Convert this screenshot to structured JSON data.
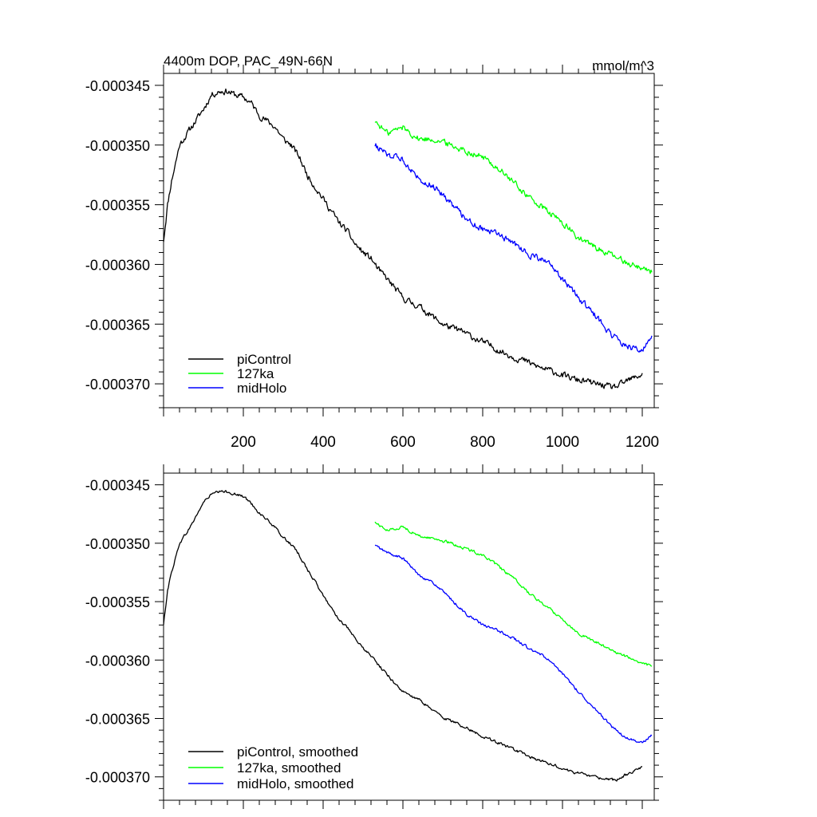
{
  "chart_data": [
    {
      "type": "line",
      "title": "4400m DOP, PAC_49N-66N",
      "units_label": "mmol/m^3",
      "xlim": [
        0,
        1230
      ],
      "ylim": [
        -0.000372,
        -0.000344
      ],
      "xticks": [
        200,
        400,
        600,
        800,
        1000,
        1200
      ],
      "xtick_labels": [
        "200",
        "400",
        "600",
        "800",
        "1000",
        "1200"
      ],
      "yticks": [
        -0.000345,
        -0.00035,
        -0.000355,
        -0.00036,
        -0.000365,
        -0.00037
      ],
      "ytick_labels": [
        "-0.000345",
        "-0.000350",
        "-0.000355",
        "-0.000360",
        "-0.000365",
        "-0.000370"
      ],
      "legend_position": "bottom-left",
      "grid": false,
      "noise": 4.5e-07,
      "series": [
        {
          "name": "piControl",
          "color": "#000000",
          "x": [
            0,
            10,
            20,
            40,
            60,
            80,
            100,
            120,
            140,
            160,
            180,
            200,
            220,
            240,
            260,
            280,
            300,
            320,
            340,
            360,
            380,
            400,
            420,
            440,
            460,
            480,
            500,
            520,
            540,
            560,
            580,
            600,
            620,
            640,
            660,
            680,
            700,
            720,
            740,
            760,
            780,
            800,
            820,
            840,
            860,
            880,
            900,
            920,
            940,
            960,
            980,
            1000,
            1020,
            1040,
            1060,
            1080,
            1100,
            1120,
            1140,
            1160,
            1180,
            1200
          ],
          "values": [
            -0.000358,
            -0.000355,
            -0.000353,
            -0.00035,
            -0.000349,
            -0.000348,
            -0.000347,
            -0.0003458,
            -0.0003455,
            -0.0003455,
            -0.0003458,
            -0.000346,
            -0.0003465,
            -0.0003475,
            -0.000348,
            -0.0003485,
            -0.0003495,
            -0.00035,
            -0.000351,
            -0.0003525,
            -0.0003535,
            -0.0003545,
            -0.0003555,
            -0.0003565,
            -0.0003572,
            -0.0003583,
            -0.000359,
            -0.0003595,
            -0.0003605,
            -0.0003612,
            -0.000362,
            -0.0003628,
            -0.0003632,
            -0.0003635,
            -0.000364,
            -0.0003645,
            -0.000365,
            -0.0003653,
            -0.0003655,
            -0.0003658,
            -0.0003662,
            -0.0003665,
            -0.0003668,
            -0.0003672,
            -0.0003675,
            -0.0003678,
            -0.000368,
            -0.0003683,
            -0.0003686,
            -0.0003688,
            -0.000369,
            -0.0003693,
            -0.0003695,
            -0.0003697,
            -0.0003698,
            -0.00037,
            -0.0003701,
            -0.0003703,
            -0.0003702,
            -0.0003698,
            -0.0003695,
            -0.0003692
          ]
        },
        {
          "name": "127ka",
          "color": "#00ff00",
          "x": [
            530,
            560,
            600,
            640,
            680,
            720,
            760,
            800,
            840,
            880,
            920,
            960,
            1000,
            1040,
            1080,
            1120,
            1160,
            1200,
            1225
          ],
          "values": [
            -0.000348,
            -0.000349,
            -0.0003485,
            -0.0003495,
            -0.0003495,
            -0.00035,
            -0.0003505,
            -0.000351,
            -0.000352,
            -0.0003532,
            -0.0003545,
            -0.0003555,
            -0.0003565,
            -0.0003578,
            -0.0003585,
            -0.0003592,
            -0.0003598,
            -0.0003603,
            -0.0003606
          ]
        },
        {
          "name": "midHolo",
          "color": "#0000ff",
          "x": [
            530,
            560,
            600,
            640,
            680,
            720,
            760,
            800,
            840,
            880,
            920,
            960,
            1000,
            1040,
            1080,
            1120,
            1160,
            1200,
            1225
          ],
          "values": [
            -0.00035,
            -0.0003508,
            -0.0003512,
            -0.0003528,
            -0.0003535,
            -0.0003548,
            -0.0003562,
            -0.000357,
            -0.0003575,
            -0.0003583,
            -0.0003592,
            -0.0003598,
            -0.0003612,
            -0.0003628,
            -0.0003642,
            -0.0003658,
            -0.0003668,
            -0.0003672,
            -0.0003662
          ]
        }
      ]
    },
    {
      "type": "line",
      "xlim": [
        0,
        1230
      ],
      "ylim": [
        -0.000372,
        -0.000344
      ],
      "xticks": [
        200,
        400,
        600,
        800,
        1000,
        1200
      ],
      "xtick_labels": [],
      "yticks": [
        -0.000345,
        -0.00035,
        -0.000355,
        -0.00036,
        -0.000365,
        -0.00037
      ],
      "ytick_labels": [
        "-0.000345",
        "-0.000350",
        "-0.000355",
        "-0.000360",
        "-0.000365",
        "-0.000370"
      ],
      "legend_position": "bottom-left",
      "grid": false,
      "noise": 2e-07,
      "series": [
        {
          "name": "piControl, smoothed",
          "color": "#000000",
          "x": [
            0,
            10,
            20,
            40,
            60,
            80,
            100,
            120,
            140,
            160,
            180,
            200,
            220,
            240,
            260,
            280,
            300,
            320,
            340,
            360,
            380,
            400,
            420,
            440,
            460,
            480,
            500,
            520,
            540,
            560,
            580,
            600,
            620,
            640,
            660,
            680,
            700,
            720,
            740,
            760,
            780,
            800,
            820,
            840,
            860,
            880,
            900,
            920,
            940,
            960,
            980,
            1000,
            1020,
            1040,
            1060,
            1080,
            1100,
            1120,
            1140,
            1160,
            1180,
            1200
          ],
          "values": [
            -0.000357,
            -0.000354,
            -0.0003525,
            -0.00035,
            -0.000349,
            -0.0003478,
            -0.0003465,
            -0.0003458,
            -0.0003456,
            -0.0003456,
            -0.0003458,
            -0.000346,
            -0.0003466,
            -0.0003474,
            -0.000348,
            -0.0003487,
            -0.0003495,
            -0.0003501,
            -0.000351,
            -0.0003522,
            -0.0003533,
            -0.0003545,
            -0.0003555,
            -0.0003565,
            -0.0003572,
            -0.0003582,
            -0.000359,
            -0.0003596,
            -0.0003605,
            -0.0003612,
            -0.000362,
            -0.0003627,
            -0.0003631,
            -0.0003634,
            -0.0003639,
            -0.0003644,
            -0.0003649,
            -0.0003652,
            -0.0003655,
            -0.0003658,
            -0.0003662,
            -0.0003665,
            -0.0003668,
            -0.0003671,
            -0.0003674,
            -0.0003677,
            -0.000368,
            -0.0003683,
            -0.0003686,
            -0.0003688,
            -0.000369,
            -0.0003693,
            -0.0003695,
            -0.0003697,
            -0.0003698,
            -0.00037,
            -0.0003701,
            -0.0003703,
            -0.0003702,
            -0.0003698,
            -0.0003695,
            -0.0003692
          ]
        },
        {
          "name": "127ka, smoothed",
          "color": "#00ff00",
          "x": [
            530,
            560,
            600,
            640,
            680,
            720,
            760,
            800,
            840,
            880,
            920,
            960,
            1000,
            1040,
            1080,
            1120,
            1160,
            1200,
            1225
          ],
          "values": [
            -0.0003482,
            -0.0003489,
            -0.0003486,
            -0.0003494,
            -0.0003496,
            -0.00035,
            -0.0003505,
            -0.000351,
            -0.000352,
            -0.0003531,
            -0.0003544,
            -0.0003554,
            -0.0003565,
            -0.0003577,
            -0.0003584,
            -0.0003591,
            -0.0003597,
            -0.0003603,
            -0.0003605
          ]
        },
        {
          "name": "midHolo, smoothed",
          "color": "#0000ff",
          "x": [
            530,
            560,
            600,
            640,
            680,
            720,
            760,
            800,
            840,
            880,
            920,
            960,
            1000,
            1040,
            1080,
            1120,
            1160,
            1200,
            1225
          ],
          "values": [
            -0.0003502,
            -0.0003508,
            -0.0003513,
            -0.0003527,
            -0.0003535,
            -0.0003548,
            -0.0003561,
            -0.000357,
            -0.0003575,
            -0.0003582,
            -0.0003591,
            -0.0003598,
            -0.0003612,
            -0.0003627,
            -0.0003641,
            -0.0003656,
            -0.0003667,
            -0.0003671,
            -0.0003664
          ]
        }
      ]
    }
  ]
}
